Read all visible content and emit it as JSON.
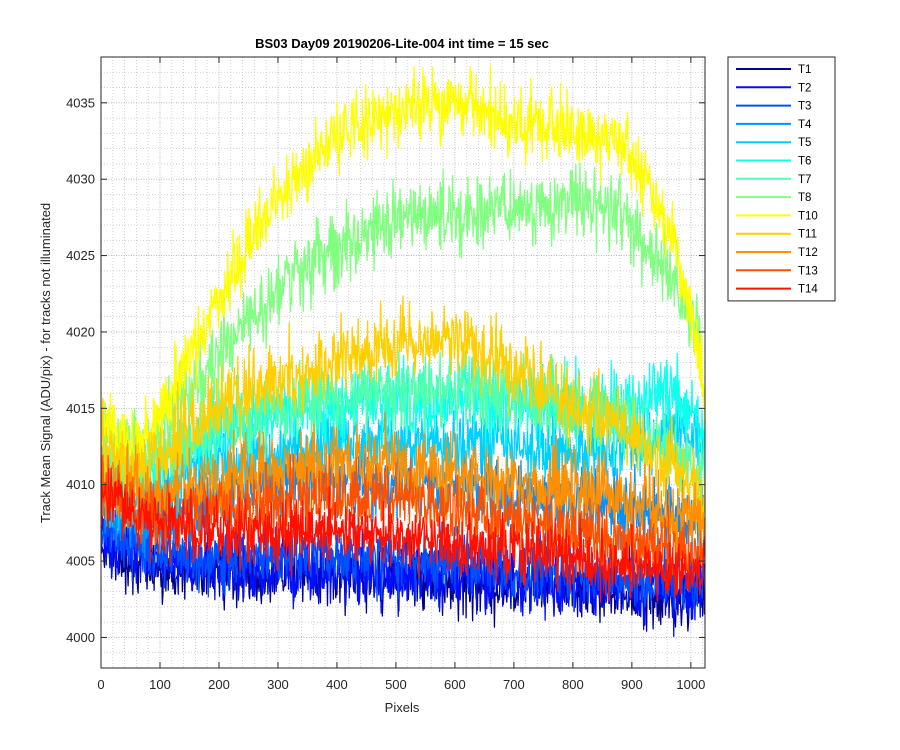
{
  "chart_data": {
    "type": "line",
    "title": "BS03 Day09 20190206-Lite-004 int time = 15 sec",
    "xlabel": "Pixels",
    "ylabel": "Track Mean Signal (ADU/pix) - for tracks not illuminated",
    "xlim": [
      0,
      1024
    ],
    "ylim": [
      3998,
      4038
    ],
    "x_ticks": [
      "0",
      "100",
      "200",
      "300",
      "400",
      "500",
      "600",
      "700",
      "800",
      "900",
      "1000"
    ],
    "y_ticks": [
      "4000",
      "4005",
      "4010",
      "4015",
      "4020",
      "4025",
      "4030",
      "4035"
    ],
    "x_minor_step": 20,
    "y_minor_step": 1,
    "grid": "major and minor (dotted)",
    "legend_position": "outside-right-top",
    "x_profile": [
      0,
      40,
      80,
      120,
      160,
      200,
      240,
      280,
      320,
      360,
      400,
      440,
      480,
      520,
      560,
      600,
      640,
      680,
      720,
      760,
      800,
      840,
      880,
      920,
      960,
      990,
      1010,
      1024
    ],
    "series": [
      {
        "name": "T1",
        "color": "#00008f",
        "noise": 1.0,
        "values": [
          4006.0,
          4005.2,
          4004.6,
          4004.4,
          4004.3,
          4004.3,
          4004.2,
          4004.1,
          4004.0,
          4004.0,
          4004.0,
          4004.0,
          4004.0,
          4003.9,
          4003.8,
          4003.7,
          4003.6,
          4003.5,
          4003.4,
          4003.3,
          4003.2,
          4003.1,
          4003.0,
          4002.8,
          4002.7,
          4002.6,
          4002.6,
          4002.8
        ]
      },
      {
        "name": "T2",
        "color": "#0010ff",
        "noise": 1.0,
        "values": [
          4006.4,
          4005.6,
          4005.0,
          4004.8,
          4004.7,
          4004.7,
          4004.6,
          4004.5,
          4004.4,
          4004.4,
          4004.4,
          4004.3,
          4004.3,
          4004.2,
          4004.1,
          4004.0,
          4003.9,
          4003.8,
          4003.7,
          4003.6,
          4003.5,
          4003.4,
          4003.3,
          4003.1,
          4003.0,
          4002.9,
          4002.9,
          4003.1
        ]
      },
      {
        "name": "T3",
        "color": "#0050ff",
        "noise": 1.0,
        "values": [
          4007.0,
          4006.2,
          4005.6,
          4005.4,
          4005.3,
          4005.4,
          4005.4,
          4005.3,
          4005.3,
          4005.3,
          4005.3,
          4005.2,
          4005.2,
          4005.1,
          4005.0,
          4004.9,
          4004.8,
          4004.7,
          4004.6,
          4004.5,
          4004.4,
          4004.2,
          4004.1,
          4003.9,
          4003.8,
          4003.7,
          4003.7,
          4003.9
        ]
      },
      {
        "name": "T4",
        "color": "#0090ff",
        "noise": 1.1,
        "values": [
          4009.0,
          4008.0,
          4007.6,
          4008.0,
          4008.6,
          4009.2,
          4009.6,
          4010.0,
          4010.2,
          4010.4,
          4010.4,
          4010.4,
          4010.3,
          4010.2,
          4010.0,
          4009.8,
          4009.6,
          4009.4,
          4009.2,
          4009.0,
          4008.8,
          4008.6,
          4008.4,
          4008.2,
          4008.0,
          4007.8,
          4007.8,
          4008.0
        ]
      },
      {
        "name": "T5",
        "color": "#00d0ff",
        "noise": 1.1,
        "values": [
          4010.0,
          4009.2,
          4009.2,
          4010.0,
          4010.8,
          4011.4,
          4011.8,
          4012.2,
          4012.4,
          4012.6,
          4012.7,
          4012.8,
          4012.8,
          4012.8,
          4012.8,
          4012.7,
          4012.6,
          4012.5,
          4012.4,
          4012.3,
          4012.2,
          4012.2,
          4012.3,
          4012.6,
          4013.0,
          4013.4,
          4013.6,
          4013.0
        ]
      },
      {
        "name": "T6",
        "color": "#10ffef",
        "noise": 1.2,
        "values": [
          4011.0,
          4010.2,
          4010.6,
          4011.6,
          4012.6,
          4013.4,
          4014.0,
          4014.5,
          4014.8,
          4015.0,
          4015.2,
          4015.3,
          4015.4,
          4015.4,
          4015.5,
          4015.6,
          4015.6,
          4015.5,
          4015.4,
          4015.3,
          4015.2,
          4015.2,
          4015.3,
          4015.5,
          4015.8,
          4015.5,
          4014.5,
          4012.0
        ]
      },
      {
        "name": "T7",
        "color": "#50ffaf",
        "noise": 1.2,
        "values": [
          4011.5,
          4010.6,
          4011.0,
          4012.0,
          4013.0,
          4013.8,
          4014.4,
          4014.9,
          4015.3,
          4015.6,
          4015.8,
          4016.0,
          4016.1,
          4016.2,
          4016.2,
          4016.2,
          4016.0,
          4015.8,
          4015.5,
          4015.2,
          4014.9,
          4014.5,
          4014.0,
          4013.3,
          4012.4,
          4011.5,
          4011.0,
          4011.0
        ]
      },
      {
        "name": "T8",
        "color": "#80ff80",
        "noise": 1.2,
        "values": [
          4013.5,
          4012.2,
          4012.8,
          4014.6,
          4016.6,
          4018.6,
          4020.4,
          4022.0,
          4023.4,
          4024.6,
          4025.6,
          4026.4,
          4027.0,
          4027.4,
          4027.7,
          4027.9,
          4028.0,
          4028.1,
          4028.2,
          4028.3,
          4028.4,
          4028.2,
          4027.6,
          4026.2,
          4024.0,
          4021.8,
          4019.8,
          4016.0
        ]
      },
      {
        "name": "T10",
        "color": "#ffff00",
        "noise": 1.1,
        "values": [
          4014.5,
          4012.8,
          4013.2,
          4016.0,
          4019.2,
          4022.4,
          4025.2,
          4027.6,
          4029.6,
          4031.2,
          4032.5,
          4033.5,
          4034.3,
          4034.8,
          4035.0,
          4035.0,
          4034.6,
          4034.0,
          4033.6,
          4033.4,
          4033.4,
          4033.0,
          4032.2,
          4030.4,
          4026.8,
          4022.8,
          4019.4,
          4015.0
        ]
      },
      {
        "name": "T11",
        "color": "#ffcf00",
        "noise": 1.2,
        "values": [
          4012.6,
          4011.2,
          4011.6,
          4012.8,
          4014.0,
          4015.0,
          4015.8,
          4016.4,
          4017.0,
          4017.6,
          4018.2,
          4018.8,
          4019.2,
          4019.4,
          4019.5,
          4019.4,
          4019.0,
          4018.2,
          4017.2,
          4016.2,
          4015.2,
          4014.4,
          4013.6,
          4012.6,
          4011.6,
          4010.6,
          4009.8,
          4008.4
        ]
      },
      {
        "name": "T12",
        "color": "#ff8f00",
        "noise": 1.2,
        "values": [
          4010.5,
          4009.4,
          4009.0,
          4009.2,
          4009.6,
          4010.0,
          4010.4,
          4010.8,
          4011.0,
          4011.2,
          4011.3,
          4011.3,
          4011.2,
          4011.0,
          4010.8,
          4010.6,
          4010.4,
          4010.2,
          4010.0,
          4009.8,
          4009.6,
          4009.3,
          4009.0,
          4008.6,
          4008.2,
          4007.9,
          4007.6,
          4007.4
        ]
      },
      {
        "name": "T13",
        "color": "#ff5000",
        "noise": 1.1,
        "values": [
          4010.0,
          4008.9,
          4008.2,
          4008.0,
          4008.2,
          4008.4,
          4008.6,
          4008.8,
          4009.0,
          4009.2,
          4009.2,
          4009.2,
          4009.1,
          4008.9,
          4008.6,
          4008.3,
          4008.0,
          4007.7,
          4007.4,
          4007.1,
          4006.8,
          4006.6,
          4006.3,
          4006.0,
          4005.7,
          4005.5,
          4005.4,
          4005.5
        ]
      },
      {
        "name": "T14",
        "color": "#ff1000",
        "noise": 1.0,
        "values": [
          4009.5,
          4008.3,
          4007.6,
          4007.2,
          4007.0,
          4006.9,
          4006.8,
          4006.8,
          4006.8,
          4006.8,
          4006.8,
          4006.7,
          4006.6,
          4006.5,
          4006.3,
          4006.1,
          4005.9,
          4005.7,
          4005.5,
          4005.3,
          4005.1,
          4004.9,
          4004.7,
          4004.5,
          4004.3,
          4004.2,
          4004.1,
          4004.3
        ]
      }
    ]
  }
}
